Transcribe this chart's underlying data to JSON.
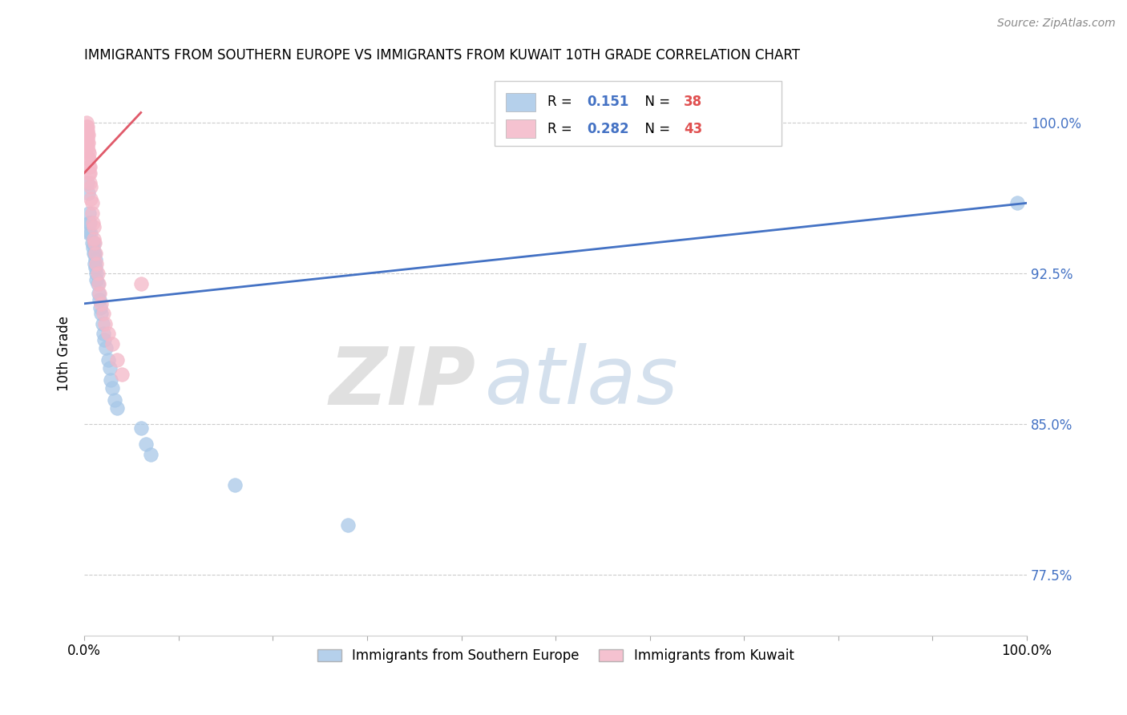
{
  "title": "IMMIGRANTS FROM SOUTHERN EUROPE VS IMMIGRANTS FROM KUWAIT 10TH GRADE CORRELATION CHART",
  "source": "Source: ZipAtlas.com",
  "ylabel": "10th Grade",
  "ylabel_right_ticks": [
    "100.0%",
    "92.5%",
    "85.0%",
    "77.5%"
  ],
  "ylabel_right_values": [
    1.0,
    0.925,
    0.85,
    0.775
  ],
  "legend_blue_r": "0.151",
  "legend_blue_n": "38",
  "legend_pink_r": "0.282",
  "legend_pink_n": "43",
  "blue_color": "#a8c8e8",
  "pink_color": "#f4b8c8",
  "line_blue_color": "#4472c4",
  "line_pink_color": "#e05a6a",
  "blue_scatter_x": [
    0.003,
    0.004,
    0.005,
    0.005,
    0.005,
    0.006,
    0.007,
    0.008,
    0.009,
    0.01,
    0.01,
    0.011,
    0.011,
    0.012,
    0.012,
    0.013,
    0.013,
    0.014,
    0.015,
    0.016,
    0.017,
    0.018,
    0.019,
    0.02,
    0.021,
    0.023,
    0.025,
    0.027,
    0.028,
    0.03,
    0.032,
    0.035,
    0.06,
    0.065,
    0.07,
    0.16,
    0.28,
    0.99
  ],
  "blue_scatter_y": [
    0.97,
    0.965,
    0.955,
    0.95,
    0.945,
    0.95,
    0.945,
    0.94,
    0.938,
    0.94,
    0.935,
    0.935,
    0.93,
    0.932,
    0.928,
    0.925,
    0.922,
    0.92,
    0.915,
    0.912,
    0.908,
    0.905,
    0.9,
    0.895,
    0.892,
    0.888,
    0.882,
    0.878,
    0.872,
    0.868,
    0.862,
    0.858,
    0.848,
    0.84,
    0.835,
    0.82,
    0.8,
    0.96
  ],
  "pink_scatter_x": [
    0.002,
    0.002,
    0.002,
    0.002,
    0.002,
    0.003,
    0.003,
    0.003,
    0.003,
    0.003,
    0.003,
    0.004,
    0.004,
    0.004,
    0.004,
    0.005,
    0.005,
    0.005,
    0.005,
    0.006,
    0.006,
    0.006,
    0.007,
    0.007,
    0.008,
    0.008,
    0.009,
    0.01,
    0.01,
    0.011,
    0.012,
    0.013,
    0.014,
    0.015,
    0.016,
    0.018,
    0.02,
    0.022,
    0.025,
    0.03,
    0.035,
    0.04,
    0.06
  ],
  "pink_scatter_y": [
    1.0,
    0.998,
    0.996,
    0.994,
    0.992,
    0.998,
    0.996,
    0.994,
    0.992,
    0.99,
    0.988,
    0.994,
    0.99,
    0.986,
    0.982,
    0.985,
    0.982,
    0.978,
    0.975,
    0.978,
    0.975,
    0.97,
    0.968,
    0.962,
    0.96,
    0.955,
    0.95,
    0.948,
    0.942,
    0.94,
    0.935,
    0.93,
    0.925,
    0.92,
    0.915,
    0.91,
    0.905,
    0.9,
    0.895,
    0.89,
    0.882,
    0.875,
    0.92
  ],
  "blue_line_x": [
    0.0,
    1.0
  ],
  "blue_line_y": [
    0.91,
    0.96
  ],
  "pink_line_x": [
    0.0,
    0.06
  ],
  "pink_line_y": [
    0.975,
    1.005
  ],
  "xlim": [
    0.0,
    1.0
  ],
  "ylim": [
    0.745,
    1.025
  ]
}
